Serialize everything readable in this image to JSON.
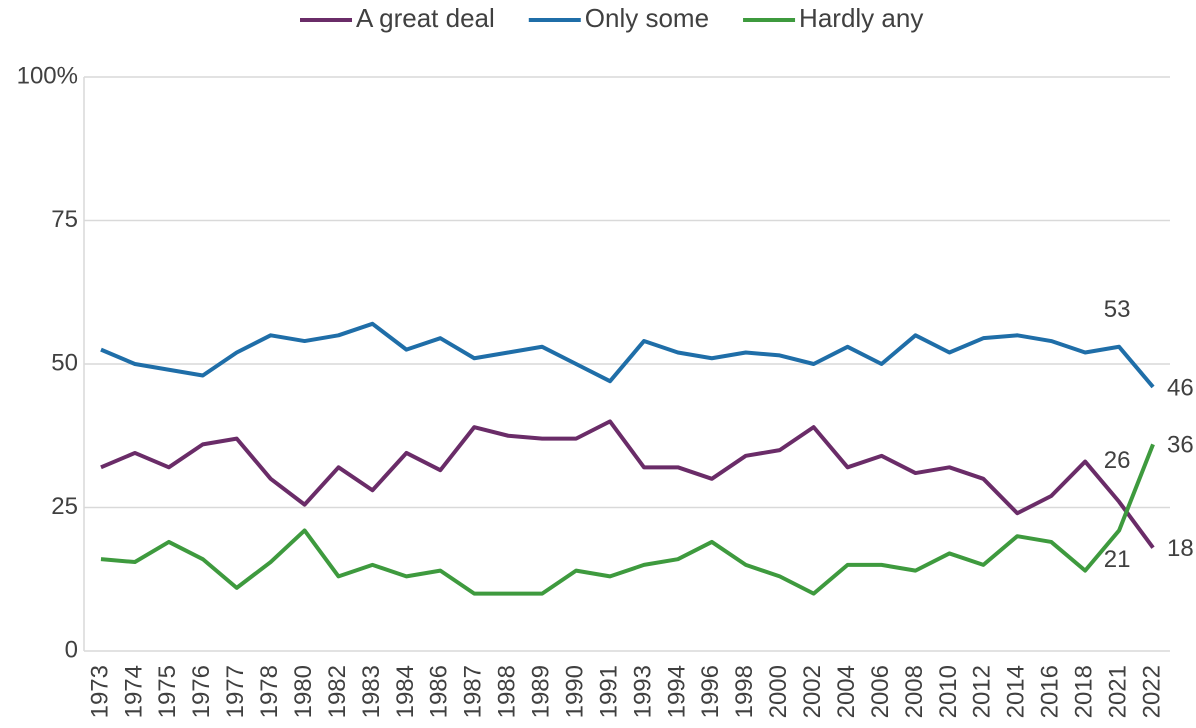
{
  "chart_data": {
    "type": "line",
    "categories": [
      "1973",
      "1974",
      "1975",
      "1976",
      "1977",
      "1978",
      "1980",
      "1982",
      "1983",
      "1984",
      "1986",
      "1987",
      "1988",
      "1989",
      "1990",
      "1991",
      "1993",
      "1994",
      "1996",
      "1998",
      "2000",
      "2002",
      "2004",
      "2006",
      "2008",
      "2010",
      "2012",
      "2014",
      "2016",
      "2018",
      "2021",
      "2022"
    ],
    "series": [
      {
        "name": "A great deal",
        "color": "#6a2c68",
        "label_indices": [
          30,
          31
        ],
        "values": [
          32,
          34.5,
          32,
          36,
          37,
          30,
          25.5,
          32,
          28,
          34.5,
          31.5,
          39,
          37.5,
          37,
          37,
          40,
          32,
          32,
          30,
          34,
          35,
          39,
          32,
          34,
          31,
          32,
          30,
          24,
          27,
          33,
          26,
          18
        ]
      },
      {
        "name": "Only some",
        "color": "#1f6ea8",
        "label_indices": [
          30,
          31
        ],
        "values": [
          52.5,
          50,
          49,
          48,
          52,
          55,
          54,
          55,
          57,
          52.5,
          54.5,
          51,
          52,
          53,
          50,
          47,
          54,
          52,
          51,
          52,
          51.5,
          50,
          53,
          50,
          55,
          52,
          54.5,
          55,
          54,
          52,
          53,
          46
        ]
      },
      {
        "name": "Hardly any",
        "color": "#3e9a3e",
        "label_indices": [
          30,
          31
        ],
        "values": [
          16,
          15.5,
          19,
          16,
          11,
          15.5,
          21,
          13,
          15,
          13,
          14,
          10,
          10,
          10,
          14,
          13,
          15,
          16,
          19,
          15,
          13,
          10,
          15,
          15,
          14,
          17,
          15,
          20,
          19,
          14,
          21,
          36
        ]
      }
    ],
    "ylim": [
      0,
      100
    ],
    "yticks": [
      0,
      25,
      50,
      75,
      {
        "value": 100,
        "label": "100%"
      }
    ],
    "grid": true
  }
}
